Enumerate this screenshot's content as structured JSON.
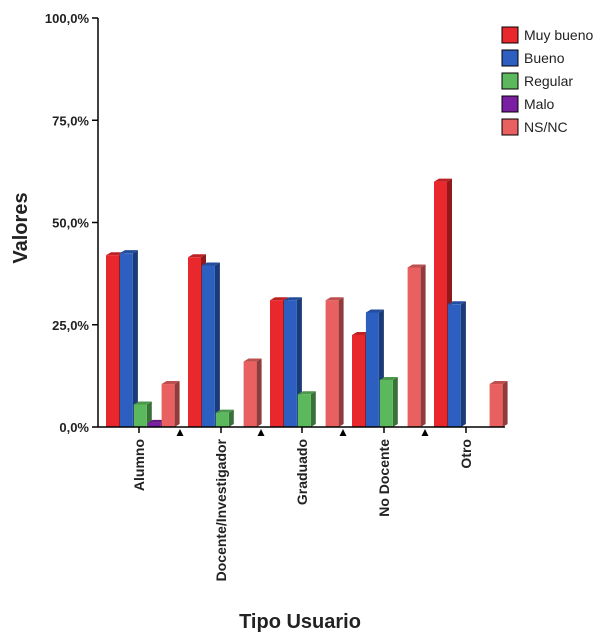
{
  "chart_data": {
    "type": "bar",
    "xlabel": "Tipo Usuario",
    "ylabel": "Valores",
    "ylim": [
      0,
      100
    ],
    "yticks": [
      "0,0%",
      "25,0%",
      "50,0%",
      "75,0%",
      "100,0%"
    ],
    "categories": [
      "Alumno",
      "Docente/Investigador",
      "Graduado",
      "No Docente",
      "Otro"
    ],
    "series": [
      {
        "name": "Muy bueno",
        "color": "#e8282c",
        "values": [
          42,
          41.5,
          31,
          22.5,
          60
        ]
      },
      {
        "name": "Bueno",
        "color": "#2c5fc0",
        "values": [
          42.5,
          39.5,
          31,
          28,
          30
        ]
      },
      {
        "name": "Regular",
        "color": "#5cb85c",
        "values": [
          5.5,
          3.5,
          8,
          11.5,
          0
        ]
      },
      {
        "name": "Malo",
        "color": "#7a1fa2",
        "values": [
          1,
          0,
          0,
          0,
          0
        ]
      },
      {
        "name": "NS/NC",
        "color": "#e86060",
        "values": [
          10.5,
          16,
          31,
          39,
          10.5
        ]
      }
    ],
    "legend_position": "top-right",
    "grid": false
  }
}
